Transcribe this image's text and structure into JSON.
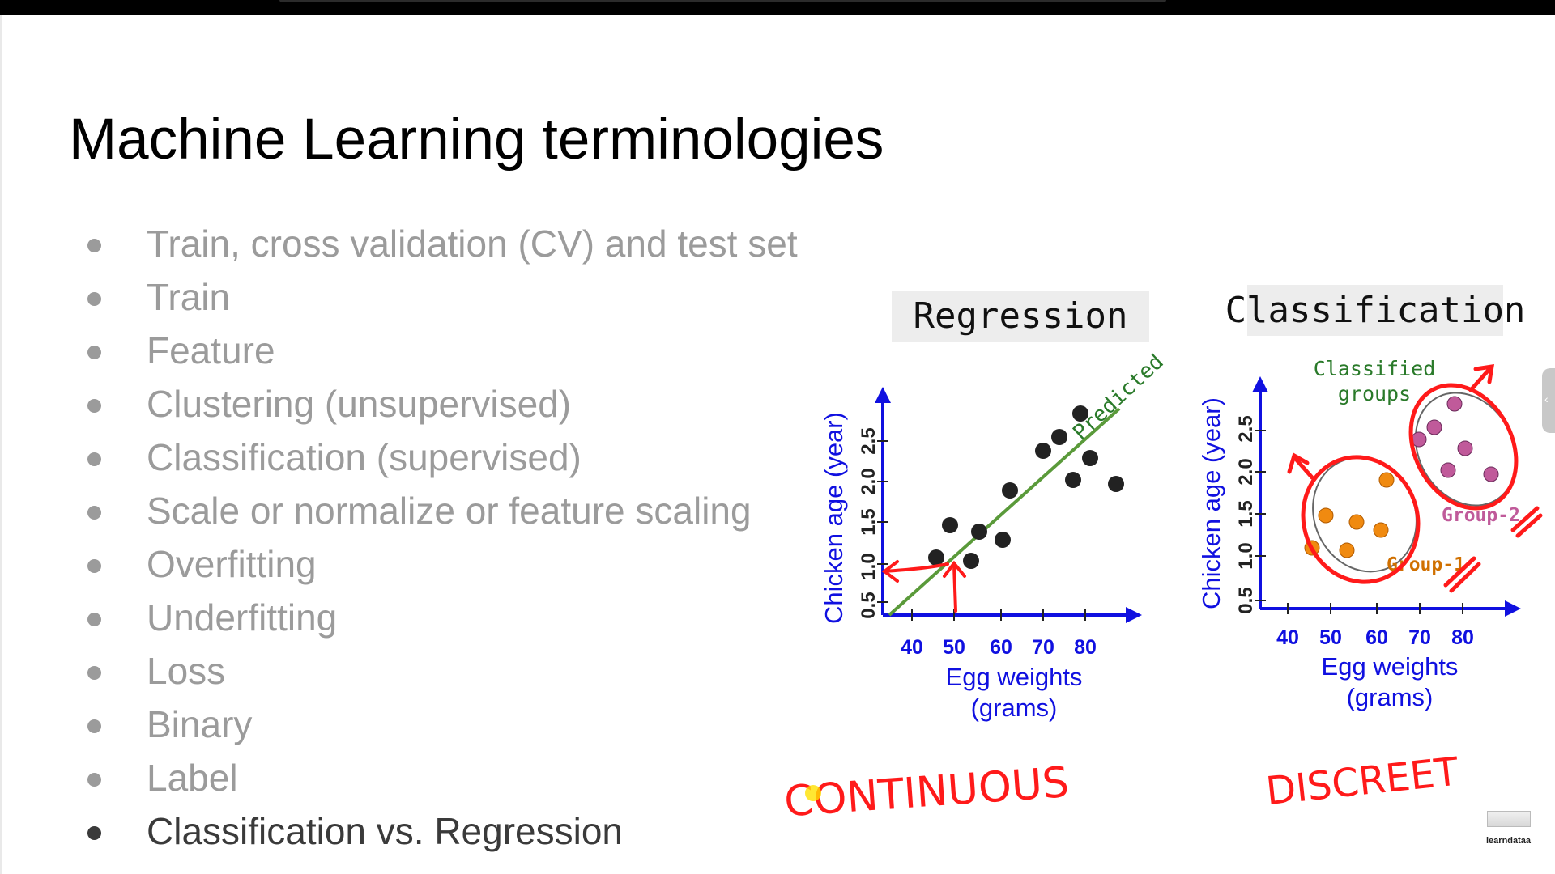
{
  "slide": {
    "title": "Machine Learning terminologies",
    "bullets": [
      {
        "text": "Train, cross validation (CV) and test set",
        "active": false
      },
      {
        "text": "Train",
        "active": false
      },
      {
        "text": "Feature",
        "active": false
      },
      {
        "text": "Clustering (unsupervised)",
        "active": false
      },
      {
        "text": "Classification (supervised)",
        "active": false
      },
      {
        "text": "Scale or normalize or feature scaling",
        "active": false
      },
      {
        "text": "Overfitting",
        "active": false
      },
      {
        "text": "Underfitting",
        "active": false
      },
      {
        "text": "Loss",
        "active": false
      },
      {
        "text": "Binary",
        "active": false
      },
      {
        "text": "Label",
        "active": false
      },
      {
        "text": "Classification vs. Regression",
        "active": true
      }
    ]
  },
  "regression": {
    "heading": "Regression",
    "line_label": "Predicted",
    "y_label": "Chicken age (year)",
    "x_label_line1": "Egg weights",
    "x_label_line2": "(grams)",
    "x_ticks": [
      "40",
      "50",
      "60",
      "70",
      "80"
    ],
    "y_ticks": [
      "0.5",
      "1.0",
      "1.5",
      "2.0",
      "2.5"
    ],
    "annotation": "CONTINUOUS"
  },
  "classification": {
    "heading": "Classification",
    "note_line1": "Classified",
    "note_line2": "groups",
    "group1": "Group-1",
    "group2": "Group-2",
    "y_label": "Chicken age (year)",
    "x_label_line1": "Egg weights",
    "x_label_line2": "(grams)",
    "x_ticks": [
      "40",
      "50",
      "60",
      "70",
      "80"
    ],
    "y_ticks": [
      "0.5",
      "1.0",
      "1.5",
      "2.0",
      "2.5"
    ],
    "annotation": "DISCREET"
  },
  "branding": {
    "logo_text": "learndataa"
  },
  "colors": {
    "axis": "#1010e0",
    "ink": "#ff1a1a",
    "fit_line": "#5a9a3a",
    "points": "#222222",
    "group1": "#f08a10",
    "group2": "#c05a9a",
    "note": "#2a7a2a"
  }
}
